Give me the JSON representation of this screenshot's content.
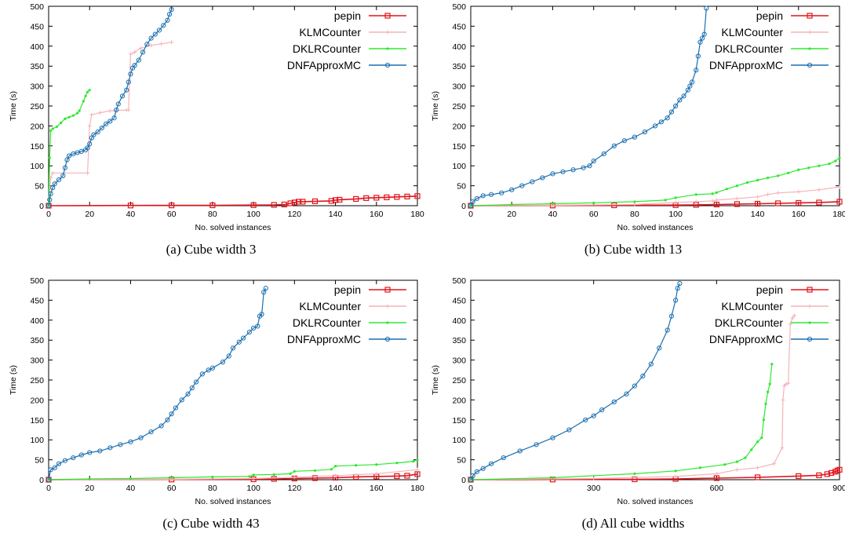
{
  "figure": {
    "colors": {
      "pepin": "#e0141c",
      "KLMCounter": "#f4b4b8",
      "DKLRCounter": "#2ee82e",
      "DNFApproxMC": "#1a6fb0"
    }
  },
  "chart_data": [
    {
      "type": "line",
      "caption": "(a) Cube width 3",
      "xlabel": "No. solved instances",
      "ylabel": "Time (s)",
      "xlim": [
        0,
        180
      ],
      "ylim": [
        0,
        500
      ],
      "xticks": [
        0,
        20,
        40,
        60,
        80,
        100,
        120,
        140,
        160,
        180
      ],
      "yticks": [
        0,
        50,
        100,
        150,
        200,
        250,
        300,
        350,
        400,
        450,
        500
      ],
      "grid": false,
      "legend": "top-right",
      "series": [
        {
          "name": "pepin",
          "marker": "square",
          "x": [
            0,
            40,
            60,
            80,
            100,
            110,
            115,
            118,
            120,
            122,
            124,
            130,
            138,
            140,
            142,
            150,
            155,
            160,
            165,
            170,
            175,
            180
          ],
          "y": [
            0,
            0.5,
            0.8,
            1,
            1.5,
            2,
            3,
            6,
            8,
            10,
            10,
            11,
            12,
            14,
            15,
            17,
            19,
            20,
            21,
            22,
            23,
            24
          ]
        },
        {
          "name": "KLMCounter",
          "marker": "cross",
          "x": [
            0,
            1,
            2,
            19,
            20,
            21,
            25,
            30,
            38,
            39,
            40,
            42,
            45,
            50,
            55,
            60
          ],
          "y": [
            0,
            70,
            82,
            82,
            200,
            228,
            233,
            238,
            240,
            240,
            380,
            385,
            395,
            402,
            406,
            410
          ]
        },
        {
          "name": "DKLRCounter",
          "marker": "dot",
          "x": [
            0,
            0.5,
            1,
            2,
            4,
            6,
            8,
            10,
            12,
            14,
            15,
            17,
            18,
            19,
            20
          ],
          "y": [
            0,
            120,
            188,
            193,
            198,
            208,
            218,
            222,
            226,
            232,
            238,
            262,
            275,
            285,
            290
          ]
        },
        {
          "name": "DNFApproxMC",
          "marker": "circle",
          "x": [
            0,
            0.5,
            1,
            2,
            3,
            5,
            7,
            8,
            9,
            10,
            12,
            14,
            16,
            18,
            19,
            20,
            21,
            22,
            24,
            26,
            28,
            30,
            32,
            33,
            34,
            36,
            38,
            39,
            40,
            41,
            42,
            44,
            46,
            48,
            50,
            52,
            54,
            56,
            58,
            59,
            60
          ],
          "y": [
            0,
            15,
            30,
            45,
            55,
            65,
            75,
            95,
            115,
            125,
            130,
            133,
            136,
            140,
            145,
            155,
            170,
            178,
            185,
            195,
            205,
            212,
            220,
            240,
            255,
            275,
            290,
            310,
            330,
            345,
            352,
            365,
            385,
            405,
            420,
            430,
            440,
            452,
            465,
            480,
            492
          ]
        }
      ]
    },
    {
      "type": "line",
      "caption": "(b) Cube width 13",
      "xlabel": "No. solved instances",
      "ylabel": "Time (s)",
      "xlim": [
        0,
        180
      ],
      "ylim": [
        0,
        500
      ],
      "xticks": [
        0,
        20,
        40,
        60,
        80,
        100,
        120,
        140,
        160,
        180
      ],
      "yticks": [
        0,
        50,
        100,
        150,
        200,
        250,
        300,
        350,
        400,
        450,
        500
      ],
      "grid": false,
      "legend": "top-right",
      "series": [
        {
          "name": "pepin",
          "marker": "square",
          "x": [
            0,
            40,
            70,
            100,
            110,
            120,
            130,
            140,
            150,
            160,
            170,
            180
          ],
          "y": [
            0,
            0.5,
            1,
            1.5,
            2,
            3,
            4,
            5,
            6,
            7,
            8,
            10
          ]
        },
        {
          "name": "KLMCounter",
          "marker": "cross",
          "x": [
            0,
            40,
            80,
            100,
            110,
            118,
            120,
            130,
            140,
            145,
            150,
            160,
            170,
            180
          ],
          "y": [
            0,
            1,
            3,
            8,
            10,
            12,
            14,
            18,
            22,
            28,
            32,
            35,
            40,
            47
          ]
        },
        {
          "name": "DKLRCounter",
          "marker": "dot",
          "x": [
            0,
            20,
            40,
            60,
            80,
            95,
            100,
            110,
            118,
            120,
            125,
            130,
            135,
            140,
            145,
            150,
            155,
            160,
            165,
            170,
            175,
            178,
            180
          ],
          "y": [
            0,
            3,
            5,
            7,
            10,
            14,
            20,
            28,
            30,
            33,
            42,
            50,
            58,
            64,
            70,
            75,
            82,
            90,
            95,
            100,
            105,
            112,
            120
          ]
        },
        {
          "name": "DNFApproxMC",
          "marker": "circle",
          "x": [
            0,
            1,
            3,
            6,
            10,
            15,
            20,
            25,
            30,
            35,
            40,
            45,
            50,
            55,
            58,
            60,
            65,
            70,
            75,
            80,
            85,
            90,
            93,
            96,
            98,
            100,
            102,
            104,
            106,
            107,
            108,
            110,
            111,
            112,
            113,
            114,
            115
          ],
          "y": [
            0,
            10,
            18,
            25,
            28,
            32,
            40,
            50,
            60,
            70,
            80,
            85,
            90,
            95,
            100,
            112,
            130,
            150,
            163,
            172,
            185,
            200,
            210,
            220,
            235,
            250,
            265,
            275,
            290,
            300,
            310,
            340,
            375,
            410,
            420,
            430,
            495
          ]
        }
      ]
    },
    {
      "type": "line",
      "caption": "(c) Cube width 43",
      "xlabel": "No. solved instances",
      "ylabel": "Time (s)",
      "xlim": [
        0,
        180
      ],
      "ylim": [
        0,
        500
      ],
      "xticks": [
        0,
        20,
        40,
        60,
        80,
        100,
        120,
        140,
        160,
        180
      ],
      "yticks": [
        0,
        50,
        100,
        150,
        200,
        250,
        300,
        350,
        400,
        450,
        500
      ],
      "grid": false,
      "legend": "top-right",
      "series": [
        {
          "name": "pepin",
          "marker": "square",
          "x": [
            0,
            60,
            100,
            110,
            120,
            130,
            140,
            150,
            160,
            170,
            175,
            180
          ],
          "y": [
            0,
            0.5,
            1,
            2,
            3,
            4,
            5,
            7,
            8,
            9,
            10,
            14
          ]
        },
        {
          "name": "KLMCounter",
          "marker": "cross",
          "x": [
            0,
            60,
            100,
            120,
            140,
            160,
            180
          ],
          "y": [
            0,
            1,
            3,
            6,
            10,
            15,
            25
          ]
        },
        {
          "name": "DKLRCounter",
          "marker": "dot",
          "x": [
            0,
            20,
            40,
            60,
            80,
            98,
            100,
            110,
            118,
            120,
            130,
            138,
            140,
            150,
            160,
            170,
            178,
            180
          ],
          "y": [
            0,
            2,
            3,
            5,
            7,
            8,
            12,
            13,
            15,
            21,
            23,
            26,
            34,
            36,
            38,
            42,
            46,
            50
          ]
        },
        {
          "name": "DNFApproxMC",
          "marker": "circle",
          "x": [
            0,
            1,
            3,
            5,
            8,
            12,
            16,
            20,
            25,
            30,
            35,
            40,
            45,
            50,
            55,
            58,
            60,
            62,
            65,
            68,
            70,
            72,
            75,
            78,
            80,
            85,
            88,
            90,
            93,
            95,
            98,
            100,
            102,
            103,
            104,
            105,
            106
          ],
          "y": [
            0,
            25,
            30,
            40,
            48,
            55,
            62,
            68,
            72,
            80,
            88,
            95,
            105,
            120,
            135,
            150,
            165,
            180,
            200,
            215,
            230,
            245,
            265,
            275,
            280,
            295,
            310,
            330,
            345,
            355,
            370,
            380,
            385,
            410,
            415,
            470,
            480
          ]
        }
      ]
    },
    {
      "type": "line",
      "caption": "(d) All cube widths",
      "xlabel": "No. solved instances",
      "ylabel": "Time (s)",
      "xlim": [
        0,
        900
      ],
      "ylim": [
        0,
        500
      ],
      "xticks": [
        0,
        300,
        600,
        900
      ],
      "yticks": [
        0,
        50,
        100,
        150,
        200,
        250,
        300,
        350,
        400,
        450,
        500
      ],
      "grid": false,
      "legend": "top-right",
      "series": [
        {
          "name": "pepin",
          "marker": "square",
          "x": [
            0,
            200,
            400,
            500,
            600,
            700,
            800,
            850,
            870,
            880,
            890,
            895,
            900
          ],
          "y": [
            0,
            0.5,
            1,
            2,
            4,
            6,
            9,
            11,
            14,
            17,
            20,
            23,
            25
          ]
        },
        {
          "name": "KLMCounter",
          "marker": "cross",
          "x": [
            0,
            300,
            500,
            600,
            650,
            700,
            740,
            760,
            762,
            765,
            770,
            775,
            780,
            785,
            790
          ],
          "y": [
            0,
            3,
            8,
            15,
            25,
            30,
            40,
            80,
            200,
            235,
            240,
            242,
            390,
            405,
            412
          ]
        },
        {
          "name": "DKLRCounter",
          "marker": "dot",
          "x": [
            0,
            200,
            400,
            500,
            560,
            620,
            650,
            670,
            685,
            700,
            710,
            715,
            720,
            725,
            730,
            735
          ],
          "y": [
            0,
            5,
            15,
            22,
            30,
            38,
            45,
            55,
            75,
            95,
            105,
            150,
            190,
            220,
            240,
            290
          ]
        },
        {
          "name": "DNFApproxMC",
          "marker": "circle",
          "x": [
            0,
            5,
            15,
            30,
            50,
            80,
            120,
            160,
            200,
            240,
            280,
            300,
            320,
            350,
            380,
            400,
            420,
            440,
            460,
            480,
            490,
            500,
            505,
            510
          ],
          "y": [
            0,
            10,
            20,
            28,
            40,
            55,
            72,
            88,
            105,
            125,
            150,
            160,
            175,
            195,
            215,
            235,
            260,
            290,
            330,
            375,
            410,
            450,
            480,
            492
          ]
        }
      ]
    }
  ]
}
